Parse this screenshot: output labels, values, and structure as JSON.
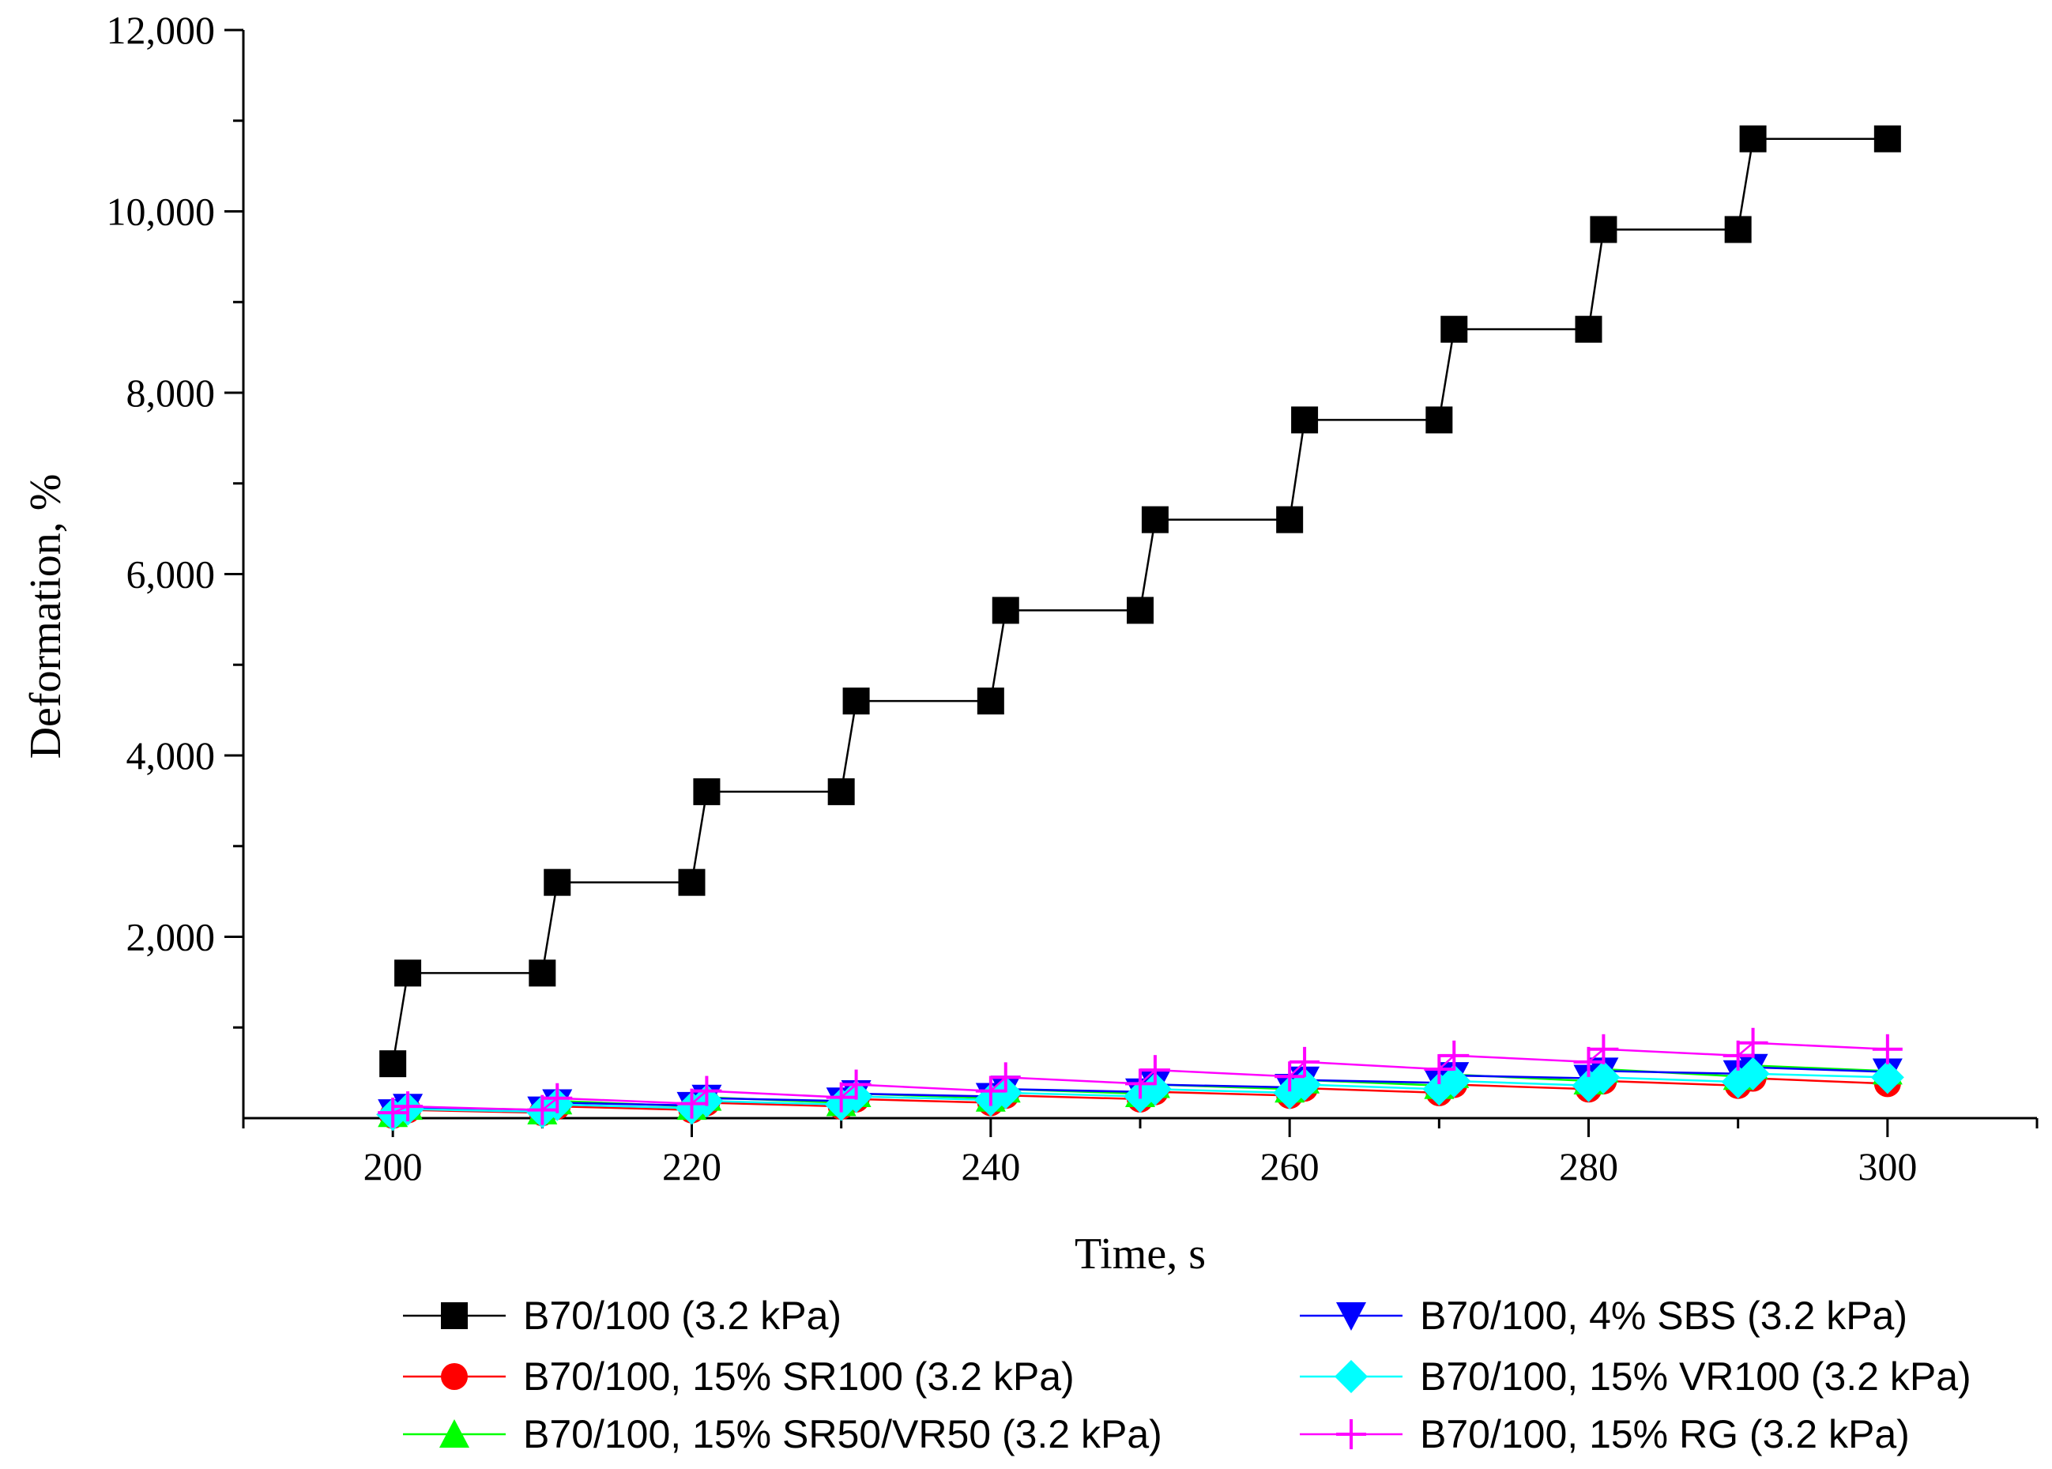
{
  "chart_data": {
    "type": "line",
    "title": "",
    "xlabel": "Time, s",
    "ylabel": "Deformation, %",
    "xlim": [
      190,
      310
    ],
    "ylim": [
      0,
      12000
    ],
    "x_ticks": [
      200,
      220,
      240,
      260,
      280,
      300
    ],
    "x_tick_labels": [
      "200",
      "220",
      "240",
      "260",
      "280",
      "300"
    ],
    "y_ticks": [
      2000,
      4000,
      6000,
      8000,
      10000,
      12000
    ],
    "y_tick_labels": [
      "2,000",
      "4,000",
      "6,000",
      "8,000",
      "10,000",
      "12,000"
    ],
    "grid": false,
    "legend_position": "bottom",
    "series": [
      {
        "name": "B70/100 (3.2 kPa)",
        "color": "#000000",
        "marker": "square",
        "x": [
          200,
          201,
          210,
          211,
          220,
          221,
          230,
          231,
          240,
          241,
          250,
          251,
          260,
          261,
          270,
          271,
          280,
          281,
          290,
          291,
          300
        ],
        "y": [
          600,
          1600,
          1600,
          2600,
          2600,
          3600,
          3600,
          4600,
          4600,
          5600,
          5600,
          6600,
          6600,
          7700,
          7700,
          8700,
          8700,
          9800,
          9800,
          10800,
          10800
        ]
      },
      {
        "name": "B70/100, 4% SBS (3.2 kPa)",
        "color": "#0000ff",
        "marker": "triangle-down",
        "x": [
          200,
          201,
          210,
          211,
          220,
          221,
          230,
          231,
          240,
          241,
          250,
          251,
          260,
          261,
          270,
          271,
          280,
          281,
          290,
          291,
          300
        ],
        "y": [
          60,
          120,
          90,
          170,
          140,
          220,
          190,
          270,
          240,
          320,
          290,
          370,
          340,
          420,
          390,
          470,
          440,
          520,
          490,
          560,
          510
        ]
      },
      {
        "name": "B70/100, 15% SR100 (3.2 kPa)",
        "color": "#ff0000",
        "marker": "circle",
        "x": [
          200,
          201,
          210,
          211,
          220,
          221,
          230,
          231,
          240,
          241,
          250,
          251,
          260,
          261,
          270,
          271,
          280,
          281,
          290,
          291,
          300
        ],
        "y": [
          30,
          90,
          60,
          130,
          90,
          170,
          130,
          210,
          170,
          250,
          210,
          290,
          250,
          330,
          280,
          370,
          320,
          410,
          360,
          440,
          380
        ]
      },
      {
        "name": "B70/100, 15% VR100 (3.2 kPa)",
        "color": "#00ffff",
        "marker": "diamond",
        "x": [
          200,
          201,
          210,
          211,
          220,
          221,
          230,
          231,
          240,
          241,
          250,
          251,
          260,
          261,
          270,
          271,
          280,
          281,
          290,
          291,
          300
        ],
        "y": [
          40,
          100,
          70,
          150,
          110,
          190,
          150,
          240,
          200,
          280,
          240,
          320,
          280,
          370,
          320,
          410,
          360,
          450,
          400,
          490,
          450
        ]
      },
      {
        "name": "B70/100, 15% SR50/VR50 (3.2 kPa)",
        "color": "#00ff00",
        "marker": "triangle-up",
        "x": [
          200,
          201,
          210,
          211,
          220,
          221,
          230,
          231,
          240,
          241,
          250,
          251,
          260,
          261,
          270,
          271,
          280,
          281,
          290,
          291,
          300
        ],
        "y": [
          50,
          130,
          80,
          190,
          130,
          230,
          170,
          270,
          220,
          320,
          270,
          370,
          320,
          420,
          360,
          480,
          410,
          540,
          460,
          580,
          520
        ]
      },
      {
        "name": "B70/100, 15% RG (3.2 kPa)",
        "color": "#ff00ff",
        "marker": "plus",
        "x": [
          200,
          201,
          210,
          211,
          220,
          221,
          230,
          231,
          240,
          241,
          250,
          251,
          260,
          261,
          270,
          271,
          280,
          281,
          290,
          291,
          300
        ],
        "y": [
          60,
          130,
          90,
          220,
          160,
          300,
          230,
          370,
          300,
          450,
          380,
          530,
          460,
          620,
          540,
          690,
          620,
          760,
          690,
          830,
          760
        ]
      }
    ],
    "legend_order": [
      0,
      1,
      2,
      3,
      4,
      5
    ]
  }
}
